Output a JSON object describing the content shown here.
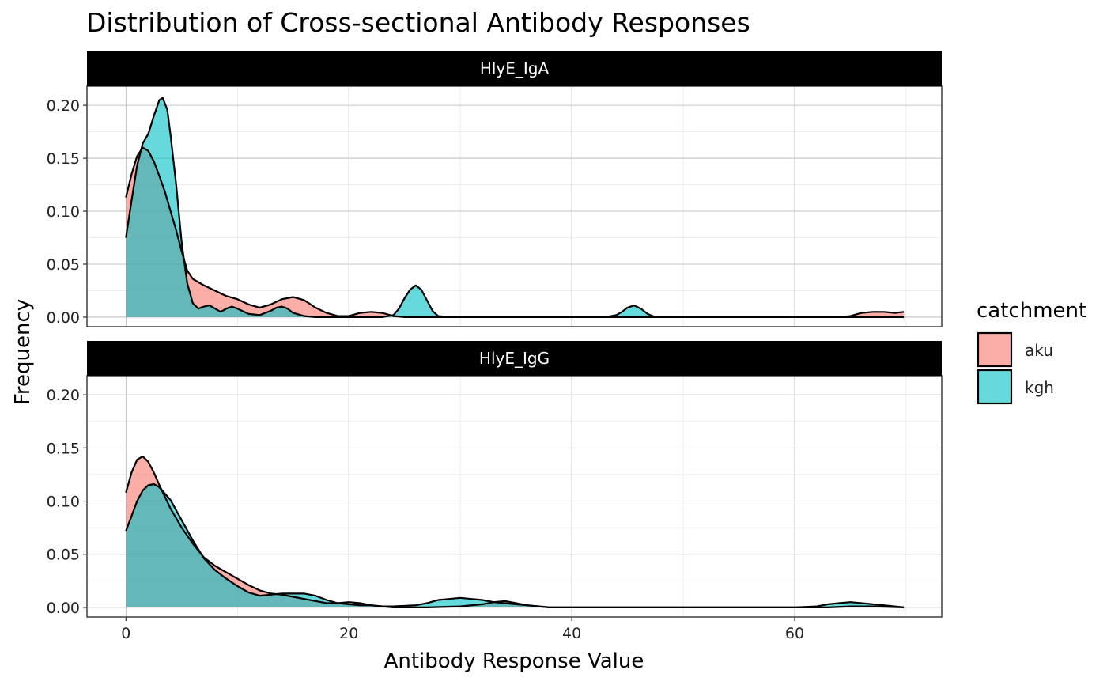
{
  "chart_data": {
    "type": "area",
    "title": "Distribution of Cross-sectional Antibody Responses",
    "xlabel": "Antibody Response Value",
    "ylabel": "Frequency",
    "xlim": [
      -3.5,
      73.2
    ],
    "ylim": [
      -0.009,
      0.218
    ],
    "x_ticks": [
      0,
      20,
      40,
      60
    ],
    "x_tick_labels": [
      "0",
      "20",
      "40",
      "60"
    ],
    "y_ticks": [
      0,
      0.05,
      0.1,
      0.15,
      0.2
    ],
    "y_tick_labels": [
      "0.00",
      "0.05",
      "0.10",
      "0.15",
      "0.20"
    ],
    "grid": true,
    "legend": {
      "title": "catchment",
      "placement": "right",
      "entries": [
        {
          "label": "aku",
          "color": "#F8766D"
        },
        {
          "label": "kgh",
          "color": "#00BFC4"
        }
      ]
    },
    "panels": [
      {
        "strip": "HlyE_IgA",
        "series": [
          {
            "name": "aku",
            "color": "#F8766D",
            "points": [
              [
                0,
                0.113
              ],
              [
                0.5,
                0.135
              ],
              [
                1,
                0.152
              ],
              [
                1.5,
                0.16
              ],
              [
                2,
                0.157
              ],
              [
                2.5,
                0.147
              ],
              [
                3,
                0.133
              ],
              [
                3.5,
                0.118
              ],
              [
                4,
                0.1
              ],
              [
                4.5,
                0.082
              ],
              [
                5,
                0.062
              ],
              [
                5.5,
                0.044
              ],
              [
                6,
                0.036
              ],
              [
                7,
                0.03
              ],
              [
                8,
                0.025
              ],
              [
                9,
                0.02
              ],
              [
                10,
                0.017
              ],
              [
                11,
                0.012
              ],
              [
                12,
                0.009
              ],
              [
                13,
                0.012
              ],
              [
                14,
                0.017
              ],
              [
                15,
                0.019
              ],
              [
                16,
                0.016
              ],
              [
                17,
                0.009
              ],
              [
                18,
                0.004
              ],
              [
                19,
                0.001
              ],
              [
                20,
                0.001
              ],
              [
                21,
                0.004
              ],
              [
                22,
                0.005
              ],
              [
                23,
                0.004
              ],
              [
                24,
                0.001
              ],
              [
                25,
                0.0
              ],
              [
                27,
                0.0
              ],
              [
                30,
                0.0
              ],
              [
                40,
                0.0
              ],
              [
                50,
                0.0
              ],
              [
                60,
                0.0
              ],
              [
                64,
                0.0
              ],
              [
                65,
                0.001
              ],
              [
                66,
                0.004
              ],
              [
                67,
                0.005
              ],
              [
                68,
                0.005
              ],
              [
                69,
                0.004
              ],
              [
                69.8,
                0.005
              ]
            ]
          },
          {
            "name": "kgh",
            "color": "#00BFC4",
            "points": [
              [
                0,
                0.075
              ],
              [
                0.5,
                0.11
              ],
              [
                1,
                0.143
              ],
              [
                1.5,
                0.164
              ],
              [
                2,
                0.173
              ],
              [
                2.5,
                0.19
              ],
              [
                3,
                0.205
              ],
              [
                3.3,
                0.207
              ],
              [
                3.7,
                0.196
              ],
              [
                4,
                0.172
              ],
              [
                4.5,
                0.125
              ],
              [
                5,
                0.07
              ],
              [
                5.5,
                0.032
              ],
              [
                6,
                0.013
              ],
              [
                6.5,
                0.008
              ],
              [
                7,
                0.01
              ],
              [
                7.5,
                0.011
              ],
              [
                8,
                0.008
              ],
              [
                8.5,
                0.005
              ],
              [
                9,
                0.008
              ],
              [
                9.5,
                0.01
              ],
              [
                10,
                0.008
              ],
              [
                11,
                0.003
              ],
              [
                12,
                0.002
              ],
              [
                13,
                0.006
              ],
              [
                13.5,
                0.009
              ],
              [
                14,
                0.01
              ],
              [
                14.5,
                0.008
              ],
              [
                15,
                0.004
              ],
              [
                16,
                0.001
              ],
              [
                17,
                0.0
              ],
              [
                23,
                0.0
              ],
              [
                24,
                0.002
              ],
              [
                24.5,
                0.008
              ],
              [
                25,
                0.018
              ],
              [
                25.5,
                0.026
              ],
              [
                26,
                0.03
              ],
              [
                26.5,
                0.026
              ],
              [
                27,
                0.016
              ],
              [
                27.5,
                0.006
              ],
              [
                28,
                0.001
              ],
              [
                29,
                0.0
              ],
              [
                43,
                0.0
              ],
              [
                44,
                0.002
              ],
              [
                44.5,
                0.005
              ],
              [
                45,
                0.009
              ],
              [
                45.6,
                0.011
              ],
              [
                46.2,
                0.008
              ],
              [
                46.8,
                0.003
              ],
              [
                47.5,
                0.0
              ],
              [
                60,
                0.0
              ],
              [
                69.8,
                0.0
              ]
            ]
          }
        ]
      },
      {
        "strip": "HlyE_IgG",
        "series": [
          {
            "name": "aku",
            "color": "#F8766D",
            "points": [
              [
                0,
                0.108
              ],
              [
                0.5,
                0.127
              ],
              [
                1,
                0.139
              ],
              [
                1.5,
                0.142
              ],
              [
                2,
                0.137
              ],
              [
                2.5,
                0.127
              ],
              [
                3,
                0.115
              ],
              [
                4,
                0.093
              ],
              [
                5,
                0.075
              ],
              [
                6,
                0.06
              ],
              [
                7,
                0.047
              ],
              [
                8,
                0.039
              ],
              [
                9,
                0.033
              ],
              [
                10,
                0.027
              ],
              [
                11,
                0.021
              ],
              [
                12,
                0.016
              ],
              [
                13,
                0.013
              ],
              [
                14,
                0.012
              ],
              [
                15,
                0.01
              ],
              [
                16,
                0.008
              ],
              [
                17,
                0.006
              ],
              [
                18,
                0.004
              ],
              [
                19,
                0.004
              ],
              [
                20,
                0.005
              ],
              [
                21,
                0.004
              ],
              [
                22,
                0.002
              ],
              [
                23,
                0.001
              ],
              [
                24,
                0.0
              ],
              [
                27,
                0.0
              ],
              [
                30,
                0.001
              ],
              [
                32,
                0.003
              ],
              [
                33,
                0.005
              ],
              [
                34,
                0.006
              ],
              [
                35,
                0.004
              ],
              [
                36,
                0.002
              ],
              [
                38,
                0.0
              ],
              [
                60,
                0.0
              ],
              [
                63,
                0.0
              ],
              [
                65,
                0.001
              ],
              [
                67,
                0.001
              ],
              [
                69.8,
                0.0
              ]
            ]
          },
          {
            "name": "kgh",
            "color": "#00BFC4",
            "points": [
              [
                0,
                0.072
              ],
              [
                0.5,
                0.086
              ],
              [
                1,
                0.1
              ],
              [
                1.5,
                0.11
              ],
              [
                2,
                0.115
              ],
              [
                2.5,
                0.116
              ],
              [
                3,
                0.113
              ],
              [
                4,
                0.101
              ],
              [
                5,
                0.082
              ],
              [
                6,
                0.063
              ],
              [
                7,
                0.046
              ],
              [
                8,
                0.035
              ],
              [
                9,
                0.027
              ],
              [
                10,
                0.02
              ],
              [
                11,
                0.014
              ],
              [
                12,
                0.011
              ],
              [
                13,
                0.012
              ],
              [
                14,
                0.013
              ],
              [
                15,
                0.013
              ],
              [
                16,
                0.013
              ],
              [
                17,
                0.011
              ],
              [
                18,
                0.007
              ],
              [
                19,
                0.004
              ],
              [
                20,
                0.003
              ],
              [
                21,
                0.002
              ],
              [
                22,
                0.002
              ],
              [
                23,
                0.001
              ],
              [
                24,
                0.001
              ],
              [
                26,
                0.002
              ],
              [
                27,
                0.004
              ],
              [
                28,
                0.007
              ],
              [
                29,
                0.008
              ],
              [
                30,
                0.009
              ],
              [
                31,
                0.008
              ],
              [
                32,
                0.007
              ],
              [
                33,
                0.005
              ],
              [
                34,
                0.004
              ],
              [
                35,
                0.003
              ],
              [
                36,
                0.002
              ],
              [
                37,
                0.001
              ],
              [
                38,
                0.0
              ],
              [
                60,
                0.0
              ],
              [
                62,
                0.001
              ],
              [
                63,
                0.003
              ],
              [
                64,
                0.004
              ],
              [
                65,
                0.005
              ],
              [
                66,
                0.004
              ],
              [
                67,
                0.003
              ],
              [
                68,
                0.002
              ],
              [
                69.8,
                0.0
              ]
            ]
          }
        ]
      }
    ]
  }
}
